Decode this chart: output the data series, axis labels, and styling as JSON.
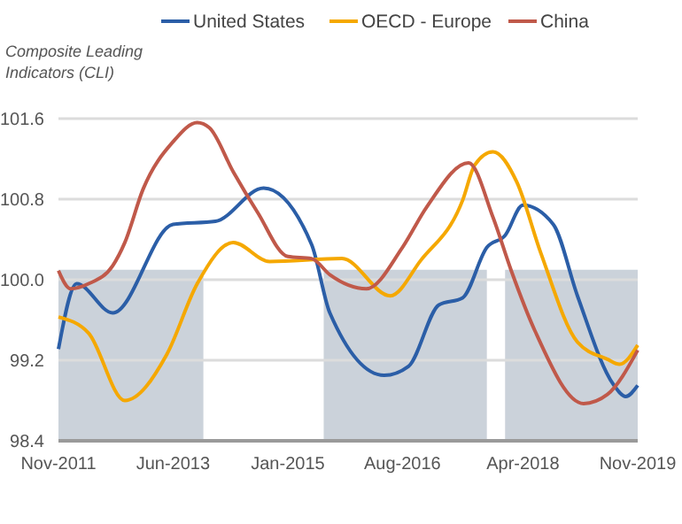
{
  "chart_data": {
    "type": "line",
    "ylabel": "Composite Leading Indicators (CLI)",
    "xlim": [
      "2011-11",
      "2019-11"
    ],
    "ylim": [
      98.4,
      101.6
    ],
    "xticks": [
      {
        "value": "2011-11",
        "label": "Nov-2011"
      },
      {
        "value": "2013-06",
        "label": "Jun-2013"
      },
      {
        "value": "2015-01",
        "label": "Jan-2015"
      },
      {
        "value": "2016-08",
        "label": "Aug-2016"
      },
      {
        "value": "2018-04",
        "label": "Apr-2018"
      },
      {
        "value": "2019-11",
        "label": "Nov-2019"
      }
    ],
    "yticks": [
      98.4,
      99.2,
      {
        "value": 100,
        "label": "100.0"
      },
      100.8,
      101.6
    ],
    "grid": "y",
    "legend": "top",
    "series": [
      {
        "type": "area",
        "color": "#cbd2da",
        "x": [
          "2011-11",
          "2013-11",
          "2013-12",
          "2015-06",
          "2015-07",
          "2017-10",
          "2017-11",
          "2017-12",
          "2018-01",
          "2019-11"
        ],
        "values": [
          100.1,
          100.1,
          null,
          null,
          100.1,
          100.1,
          null,
          null,
          100.1,
          100.1
        ]
      },
      {
        "name": "United States",
        "color": "#2b5ea7",
        "x": [
          "2011-11",
          "2012-02",
          "2012-08",
          "2013-06",
          "2014-01",
          "2014-09",
          "2015-05",
          "2015-08",
          "2016-05",
          "2016-09",
          "2017-02",
          "2017-06",
          "2017-10",
          "2018-01",
          "2018-04",
          "2018-09",
          "2019-01",
          "2019-07",
          "2019-09",
          "2019-11"
        ],
        "values": [
          99.31,
          99.96,
          99.67,
          100.55,
          100.58,
          100.91,
          100.35,
          99.67,
          99.05,
          99.14,
          99.75,
          99.82,
          100.32,
          100.44,
          100.74,
          100.55,
          99.84,
          98.96,
          98.84,
          98.95
        ]
      },
      {
        "name": "OECD - Europe",
        "color": "#f5a800",
        "x": [
          "2011-11",
          "2012-04",
          "2012-10",
          "2013-05",
          "2013-10",
          "2014-04",
          "2014-10",
          "2015-10",
          "2016-06",
          "2016-11",
          "2017-06",
          "2017-08",
          "2017-11",
          "2018-03",
          "2018-07",
          "2019-01",
          "2019-06",
          "2019-08",
          "2019-11"
        ],
        "values": [
          99.63,
          99.47,
          98.8,
          99.26,
          99.96,
          100.37,
          100.18,
          100.21,
          99.84,
          100.19,
          100.79,
          101.14,
          101.27,
          100.97,
          100.26,
          99.38,
          99.21,
          99.16,
          99.35
        ]
      },
      {
        "name": "China",
        "color": "#c0594a",
        "x": [
          "2011-11",
          "2012-01",
          "2012-04",
          "2012-08",
          "2012-10",
          "2013-01",
          "2013-06",
          "2013-10",
          "2013-12",
          "2014-04",
          "2014-08",
          "2015-01",
          "2015-05",
          "2015-08",
          "2016-02",
          "2016-08",
          "2016-12",
          "2017-07",
          "2017-11",
          "2018-02",
          "2018-06",
          "2019-02",
          "2019-06",
          "2019-11"
        ],
        "values": [
          100.09,
          99.91,
          99.96,
          100.14,
          100.37,
          100.9,
          101.37,
          101.56,
          101.51,
          101.07,
          100.67,
          100.23,
          100.21,
          100.05,
          99.91,
          100.32,
          100.72,
          101.16,
          100.62,
          100.09,
          99.49,
          98.77,
          98.86,
          99.3
        ]
      }
    ]
  }
}
